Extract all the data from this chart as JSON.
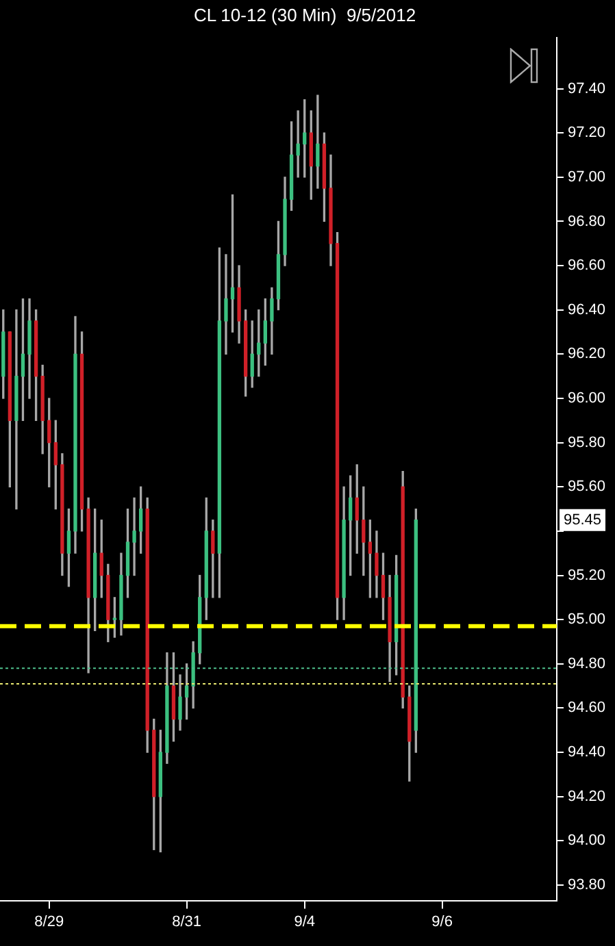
{
  "chart_data": {
    "type": "candlestick",
    "title": "CL 10-12 (30 Min)  9/5/2012",
    "categories": [
      null,
      null,
      null,
      null,
      null,
      null,
      null,
      "8/29",
      null,
      null,
      null,
      null,
      null,
      null,
      null,
      null,
      null,
      null,
      null,
      null,
      null,
      null,
      null,
      null,
      null,
      null,
      null,
      null,
      "8/31",
      null,
      null,
      null,
      null,
      null,
      null,
      null,
      null,
      null,
      null,
      null,
      null,
      null,
      null,
      null,
      null,
      null,
      "9/4",
      null,
      null,
      null,
      null,
      null,
      null,
      null,
      null,
      null,
      null,
      null,
      null,
      null,
      null,
      null,
      null,
      null,
      null,
      null,
      null,
      "9/6",
      null,
      null,
      null,
      null,
      null,
      null,
      null,
      null,
      null,
      null,
      null,
      null,
      null,
      null,
      null,
      null,
      null
    ],
    "ohlc": [
      [
        96.1,
        96.4,
        96.0,
        96.3
      ],
      [
        96.3,
        96.3,
        95.6,
        95.9
      ],
      [
        95.9,
        96.4,
        95.5,
        96.1
      ],
      [
        96.1,
        96.45,
        95.9,
        96.2
      ],
      [
        96.2,
        96.45,
        96.0,
        96.35
      ],
      [
        96.35,
        96.4,
        95.9,
        96.1
      ],
      [
        96.1,
        96.15,
        95.75,
        95.9
      ],
      [
        95.9,
        96.0,
        95.6,
        95.8
      ],
      [
        95.8,
        95.9,
        95.5,
        95.7
      ],
      [
        95.7,
        95.75,
        95.2,
        95.3
      ],
      [
        95.3,
        95.5,
        95.15,
        95.4
      ],
      [
        95.4,
        96.37,
        95.3,
        96.2
      ],
      [
        96.2,
        96.3,
        95.4,
        95.5
      ],
      [
        95.5,
        95.55,
        94.76,
        95.1
      ],
      [
        95.1,
        95.5,
        94.95,
        95.3
      ],
      [
        95.3,
        95.45,
        95.1,
        95.2
      ],
      [
        95.2,
        95.25,
        94.9,
        95.0
      ],
      [
        95.0,
        95.1,
        94.92,
        95.0
      ],
      [
        95.0,
        95.3,
        94.93,
        95.2
      ],
      [
        95.2,
        95.5,
        95.1,
        95.35
      ],
      [
        95.35,
        95.55,
        95.2,
        95.4
      ],
      [
        95.4,
        95.6,
        95.3,
        95.5
      ],
      [
        95.5,
        95.55,
        94.4,
        94.5
      ],
      [
        94.5,
        94.55,
        93.96,
        94.2
      ],
      [
        94.2,
        94.5,
        93.95,
        94.4
      ],
      [
        94.4,
        94.85,
        94.35,
        94.7
      ],
      [
        94.7,
        94.85,
        94.45,
        94.55
      ],
      [
        94.55,
        94.75,
        94.5,
        94.65
      ],
      [
        94.65,
        94.8,
        94.55,
        94.7
      ],
      [
        94.7,
        94.9,
        94.6,
        94.85
      ],
      [
        94.85,
        95.2,
        94.8,
        95.1
      ],
      [
        95.1,
        95.55,
        95.0,
        95.4
      ],
      [
        95.4,
        95.45,
        95.1,
        95.3
      ],
      [
        95.3,
        96.68,
        95.1,
        96.35
      ],
      [
        96.35,
        96.65,
        96.2,
        96.45
      ],
      [
        96.45,
        96.92,
        96.3,
        96.5
      ],
      [
        96.5,
        96.6,
        96.25,
        96.35
      ],
      [
        96.35,
        96.4,
        96.01,
        96.1
      ],
      [
        96.1,
        96.35,
        96.05,
        96.2
      ],
      [
        96.2,
        96.4,
        96.1,
        96.25
      ],
      [
        96.25,
        96.45,
        96.15,
        96.35
      ],
      [
        96.35,
        96.5,
        96.2,
        96.45
      ],
      [
        96.45,
        96.8,
        96.4,
        96.65
      ],
      [
        96.65,
        97.0,
        96.6,
        96.9
      ],
      [
        96.9,
        97.25,
        96.85,
        97.1
      ],
      [
        97.1,
        97.3,
        97.0,
        97.15
      ],
      [
        97.15,
        97.35,
        97.0,
        97.2
      ],
      [
        97.2,
        97.3,
        96.9,
        97.05
      ],
      [
        97.05,
        97.37,
        96.95,
        97.15
      ],
      [
        97.15,
        97.2,
        96.8,
        96.95
      ],
      [
        96.95,
        97.1,
        96.6,
        96.7
      ],
      [
        96.7,
        96.75,
        95.0,
        95.1
      ],
      [
        95.1,
        95.6,
        95.0,
        95.45
      ],
      [
        95.45,
        95.65,
        95.2,
        95.55
      ],
      [
        95.55,
        95.7,
        95.3,
        95.45
      ],
      [
        95.45,
        95.6,
        95.2,
        95.35
      ],
      [
        95.35,
        95.45,
        95.1,
        95.3
      ],
      [
        95.3,
        95.4,
        95.1,
        95.2
      ],
      [
        95.2,
        95.3,
        95.0,
        95.1
      ],
      [
        95.1,
        95.2,
        94.72,
        94.9
      ],
      [
        94.9,
        95.29,
        94.75,
        95.2
      ],
      [
        95.6,
        95.67,
        94.6,
        94.65
      ],
      [
        94.65,
        94.7,
        94.27,
        94.45
      ],
      [
        94.5,
        95.5,
        94.4,
        95.45
      ],
      null,
      null,
      null,
      null,
      null,
      null,
      null,
      null,
      null,
      null,
      null,
      null,
      null,
      null,
      null,
      null,
      null,
      null,
      null,
      null,
      null
    ],
    "ylim": [
      93.73,
      97.63
    ],
    "yticks": [
      {
        "value": 93.8,
        "label": "93.80"
      },
      {
        "value": 94.0,
        "label": "94.00"
      },
      {
        "value": 94.2,
        "label": "94.20"
      },
      {
        "value": 94.4,
        "label": "94.40"
      },
      {
        "value": 94.6,
        "label": "94.60"
      },
      {
        "value": 94.8,
        "label": "94.80"
      },
      {
        "value": 95.0,
        "label": "95.00"
      },
      {
        "value": 95.2,
        "label": "95.20"
      },
      {
        "value": 95.4,
        "label": null
      },
      {
        "value": 95.6,
        "label": "95.60"
      },
      {
        "value": 95.8,
        "label": "95.80"
      },
      {
        "value": 96.0,
        "label": "96.00"
      },
      {
        "value": 96.2,
        "label": "96.20"
      },
      {
        "value": 96.4,
        "label": "96.40"
      },
      {
        "value": 96.6,
        "label": "96.60"
      },
      {
        "value": 96.8,
        "label": "96.80"
      },
      {
        "value": 97.0,
        "label": "97.00"
      },
      {
        "value": 97.2,
        "label": "97.20"
      },
      {
        "value": 97.4,
        "label": "97.40"
      }
    ],
    "ref_lines": [
      {
        "axis": "y",
        "value": 94.97,
        "color": "#ffff00",
        "line_style": "dashed"
      },
      {
        "axis": "y",
        "value": 94.78,
        "color": "#4fc08d",
        "line_style": "dotted"
      },
      {
        "axis": "y",
        "value": 94.71,
        "color": "#e8e870",
        "line_style": "dotted"
      }
    ],
    "annotations": [
      {
        "text": "95.45",
        "y": 95.45
      }
    ],
    "grid": false,
    "legend": false
  }
}
